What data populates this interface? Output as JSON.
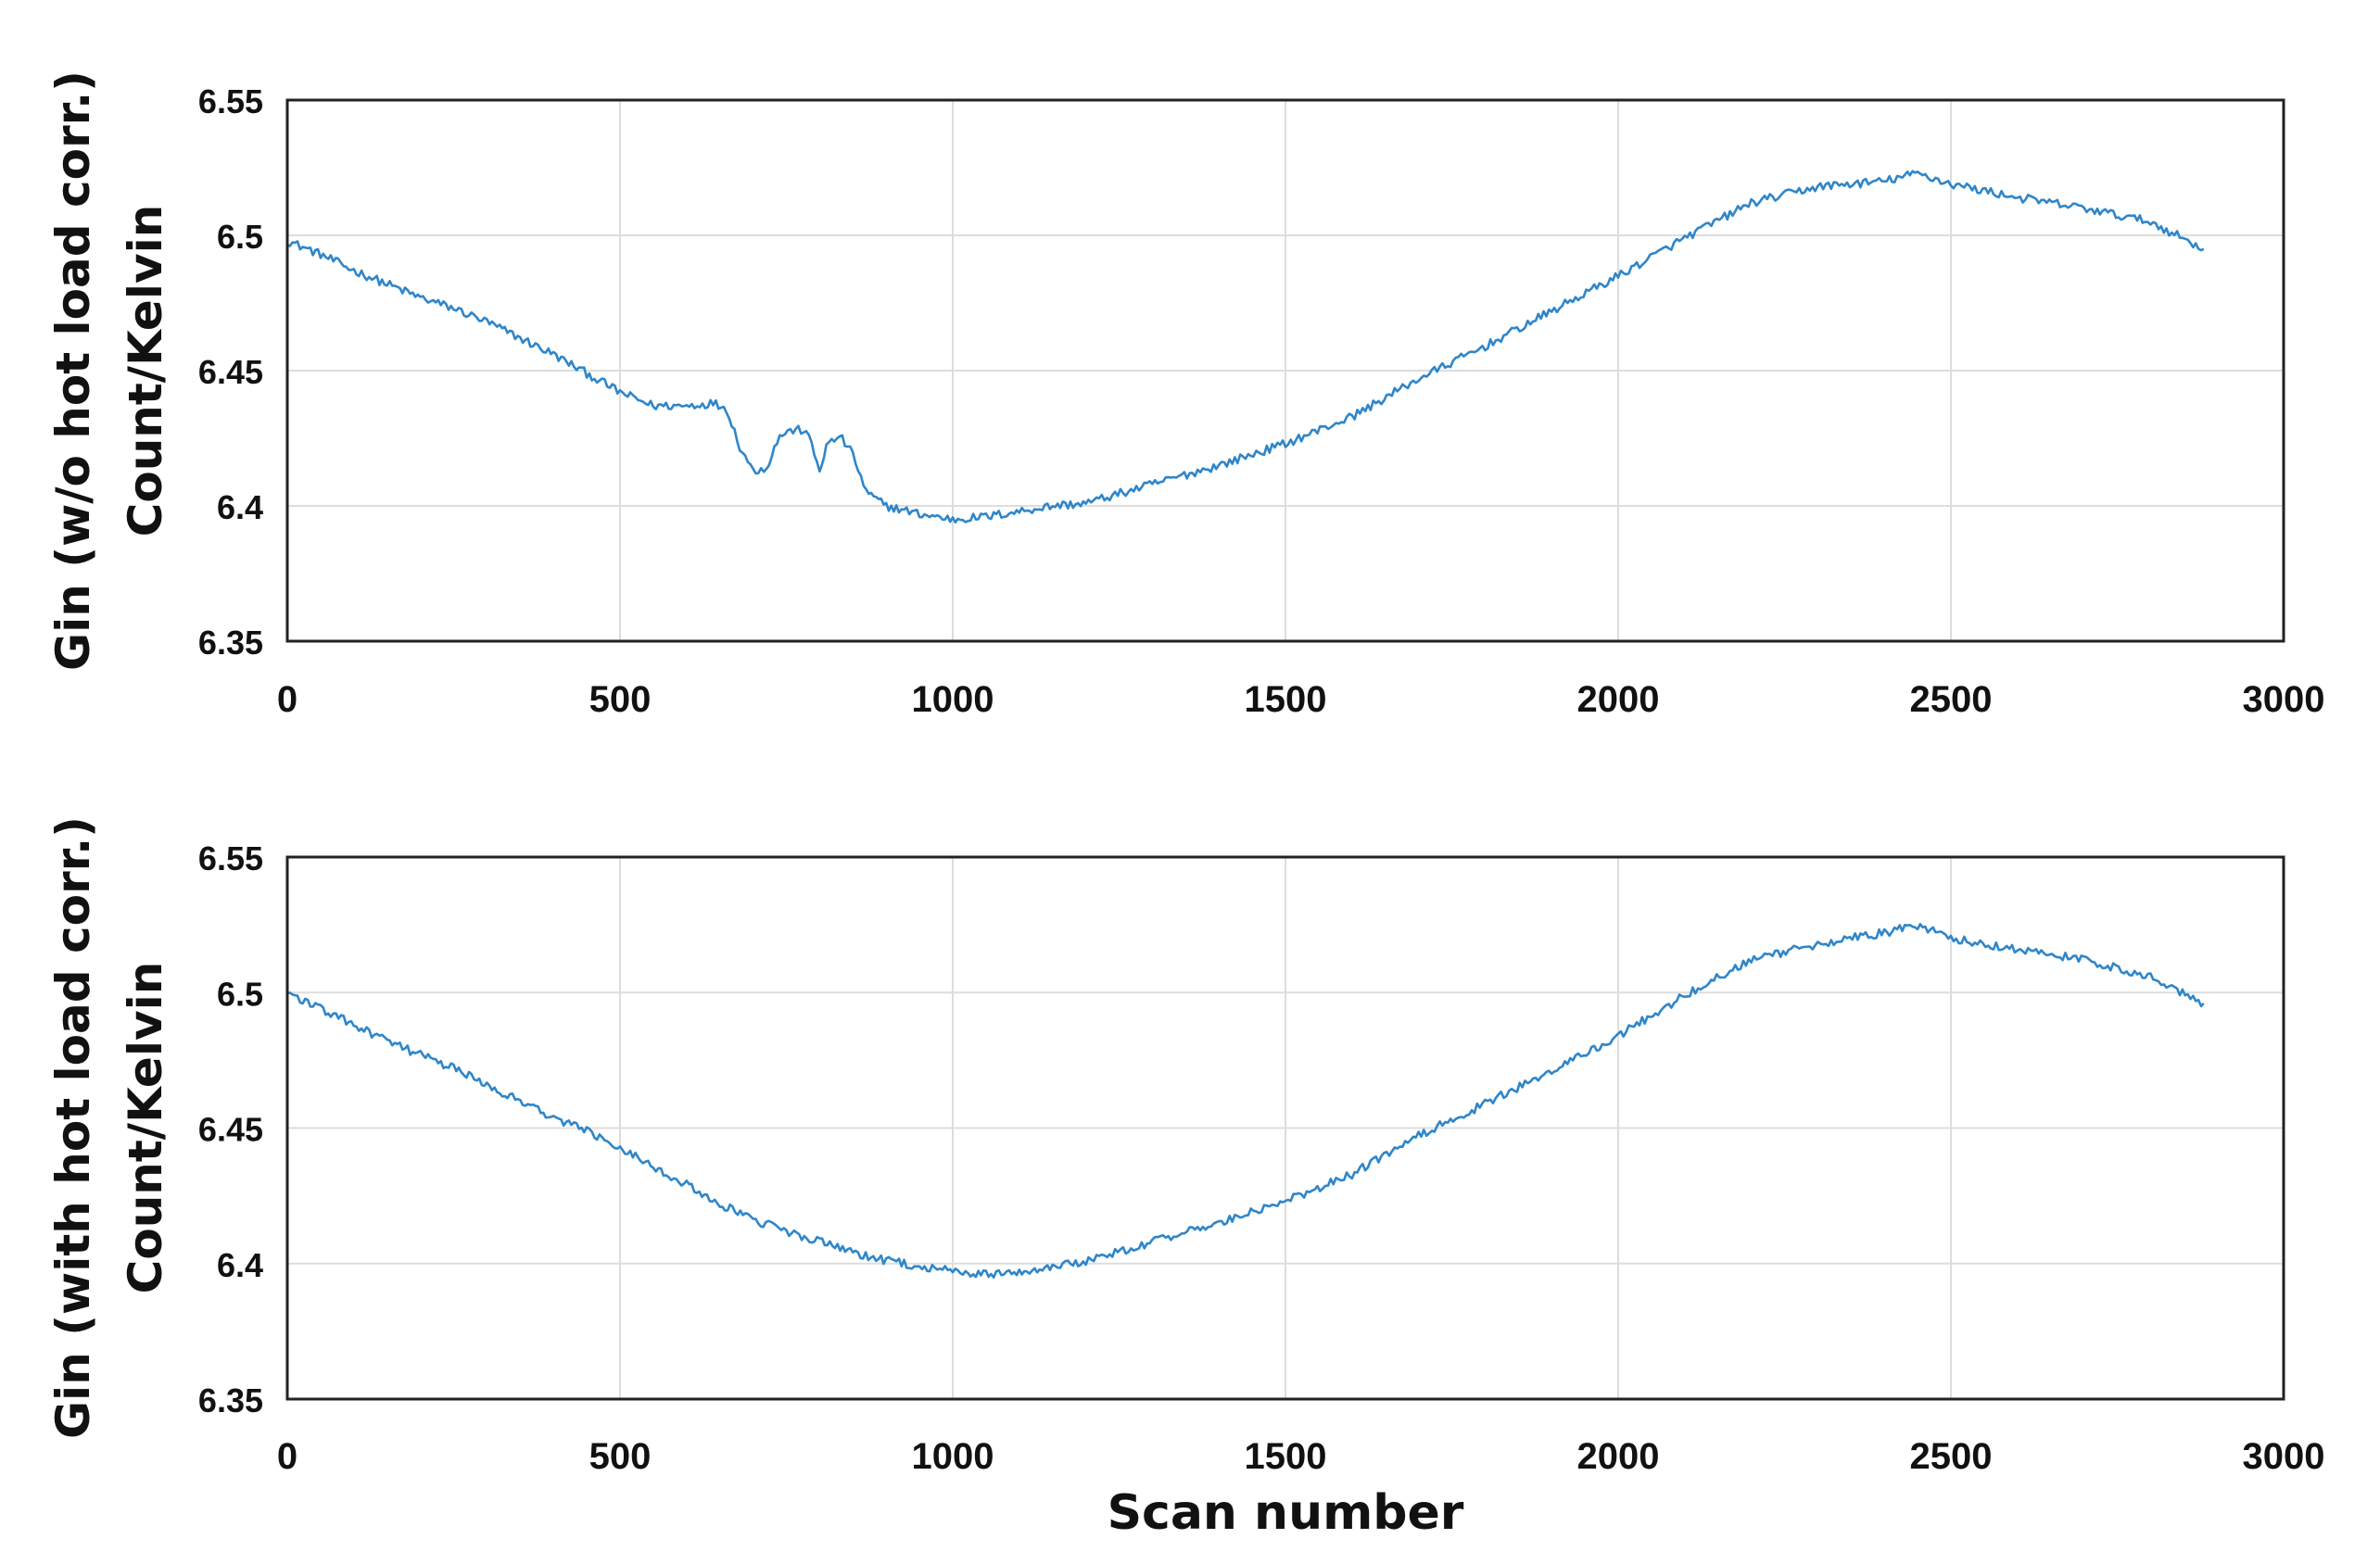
{
  "chart_data": [
    {
      "type": "line",
      "ylabel_line1": "Gin (w/o  hot load corr.)",
      "ylabel_line2": "Count/Kelvin",
      "xlabel": "",
      "xlim": [
        0,
        3000
      ],
      "ylim": [
        6.35,
        6.55
      ],
      "xticks": [
        "0",
        "500",
        "1000",
        "1500",
        "2000",
        "2500",
        "3000"
      ],
      "yticks": [
        "6.35",
        "6.4",
        "6.45",
        "6.5",
        "6.55"
      ],
      "grid": true,
      "color": "#2f86c9",
      "series": [
        {
          "x": [
            0,
            50,
            100,
            150,
            200,
            250,
            300,
            350,
            400,
            450,
            500,
            550,
            600,
            640,
            660,
            680,
            700,
            720,
            740,
            760,
            780,
            800,
            810,
            830,
            850,
            870,
            900,
            950,
            1000,
            1050,
            1100,
            1150,
            1200,
            1300,
            1400,
            1500,
            1600,
            1700,
            1800,
            1900,
            2000,
            2100,
            2200,
            2300,
            2400,
            2450,
            2500,
            2600,
            2700,
            2800,
            2880
          ],
          "y": [
            6.498,
            6.493,
            6.487,
            6.482,
            6.477,
            6.473,
            6.468,
            6.462,
            6.456,
            6.449,
            6.442,
            6.437,
            6.437,
            6.438,
            6.436,
            6.422,
            6.413,
            6.414,
            6.426,
            6.428,
            6.428,
            6.413,
            6.422,
            6.426,
            6.419,
            6.405,
            6.4,
            6.397,
            6.395,
            6.396,
            6.398,
            6.4,
            6.401,
            6.408,
            6.415,
            6.423,
            6.433,
            6.447,
            6.459,
            6.472,
            6.485,
            6.499,
            6.512,
            6.518,
            6.52,
            6.523,
            6.519,
            6.514,
            6.51,
            6.505,
            6.495
          ]
        }
      ]
    },
    {
      "type": "line",
      "ylabel_line1": "Gin (with  hot load corr.)",
      "ylabel_line2": "Count/Kelvin",
      "xlabel": "Scan number",
      "xlim": [
        0,
        3000
      ],
      "ylim": [
        6.35,
        6.55
      ],
      "xticks": [
        "0",
        "500",
        "1000",
        "1500",
        "2000",
        "2500",
        "3000"
      ],
      "yticks": [
        "6.35",
        "6.4",
        "6.45",
        "6.5",
        "6.55"
      ],
      "grid": true,
      "color": "#2f86c9",
      "series": [
        {
          "x": [
            0,
            50,
            100,
            150,
            200,
            250,
            300,
            350,
            400,
            450,
            500,
            550,
            600,
            650,
            700,
            750,
            800,
            850,
            900,
            950,
            1000,
            1050,
            1100,
            1150,
            1200,
            1300,
            1400,
            1500,
            1600,
            1700,
            1800,
            1900,
            2000,
            2100,
            2200,
            2300,
            2400,
            2450,
            2500,
            2600,
            2700,
            2800,
            2880
          ],
          "y": [
            6.5,
            6.494,
            6.488,
            6.482,
            6.477,
            6.472,
            6.466,
            6.46,
            6.454,
            6.449,
            6.443,
            6.436,
            6.429,
            6.422,
            6.416,
            6.412,
            6.408,
            6.404,
            6.401,
            6.399,
            6.397,
            6.396,
            6.397,
            6.399,
            6.401,
            6.408,
            6.415,
            6.423,
            6.433,
            6.447,
            6.459,
            6.471,
            6.484,
            6.499,
            6.512,
            6.518,
            6.522,
            6.525,
            6.52,
            6.516,
            6.512,
            6.506,
            6.496
          ]
        }
      ]
    }
  ]
}
